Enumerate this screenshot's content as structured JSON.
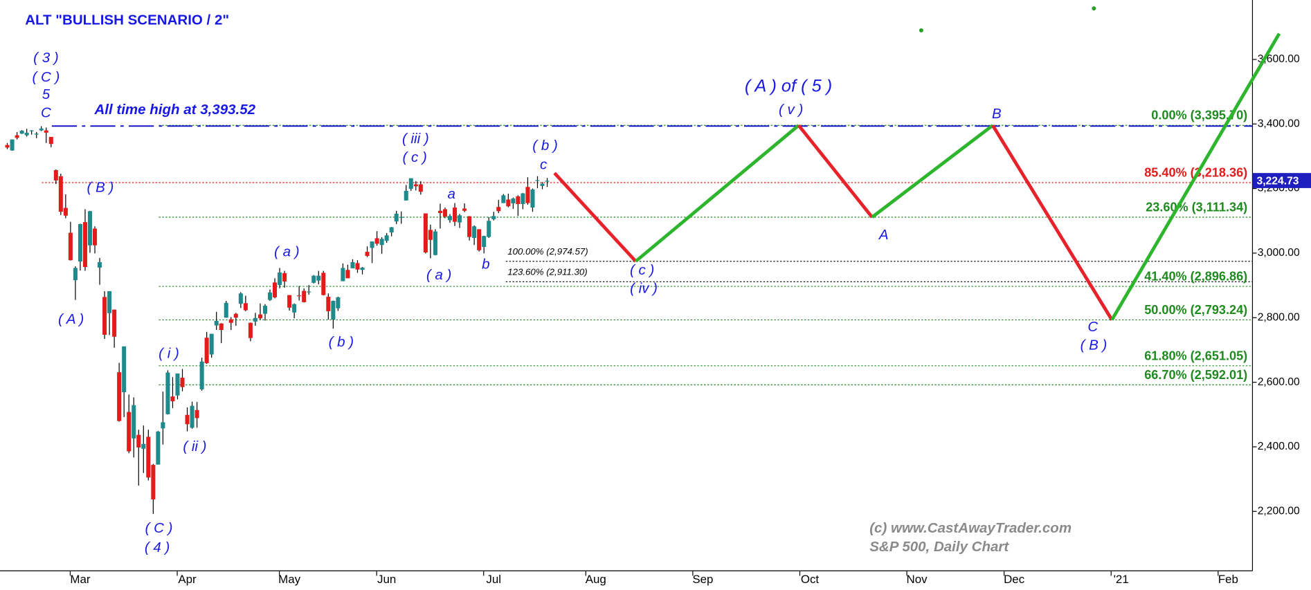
{
  "chart_data": {
    "type": "candlestick",
    "title": "ALT \"BULLISH SCENARIO / 2\"",
    "xlim": [
      -16.5,
      241
    ],
    "ylim": [
      2016,
      3784
    ],
    "xticks": [
      {
        "value": 0,
        "label": "Mar"
      },
      {
        "value": 22,
        "label": "Apr"
      },
      {
        "value": 43,
        "label": "May"
      },
      {
        "value": 63,
        "label": "Jun"
      },
      {
        "value": 85,
        "label": "Jul"
      },
      {
        "value": 106,
        "label": "Aug"
      },
      {
        "value": 128,
        "label": "Sep"
      },
      {
        "value": 150,
        "label": "Oct"
      },
      {
        "value": 172,
        "label": "Nov"
      },
      {
        "value": 192,
        "label": "Dec"
      },
      {
        "value": 214,
        "label": "'21"
      },
      {
        "value": 236,
        "label": "Feb"
      }
    ],
    "yticks": [
      {
        "value": 2200,
        "label": "2,200.00"
      },
      {
        "value": 2400,
        "label": "2,400.00"
      },
      {
        "value": 2600,
        "label": "2,600.00"
      },
      {
        "value": 2800,
        "label": "2,800.00"
      },
      {
        "value": 3000,
        "label": "3,000.00"
      },
      {
        "value": 3200,
        "label": "3,200.00"
      },
      {
        "value": 3400,
        "label": "3,400.00"
      },
      {
        "value": 3600,
        "label": "3,600.00"
      }
    ],
    "up_color": "#1f8a8c",
    "down_color": "#e31b1b",
    "x": [
      -15,
      -14,
      -13,
      -12,
      -11,
      -10,
      -9,
      -8,
      -7,
      -6,
      -5,
      -4,
      -3,
      -2,
      -1,
      0,
      1,
      2,
      3,
      4,
      5,
      6,
      7,
      8,
      9,
      10,
      11,
      12,
      13,
      14,
      15,
      16,
      17,
      18,
      19,
      20,
      21,
      22,
      23,
      24,
      25,
      26,
      27,
      28,
      29,
      30,
      31,
      32,
      33,
      34,
      35,
      36,
      37,
      38,
      39,
      40,
      41,
      42,
      43,
      44,
      45,
      46,
      47,
      48,
      49,
      50,
      51,
      52,
      53,
      54,
      55,
      56,
      57,
      58,
      59,
      60,
      61,
      62,
      63,
      64,
      65,
      66,
      67,
      68,
      69,
      70,
      71,
      72,
      73,
      74,
      75,
      76,
      77,
      78,
      79,
      80,
      81,
      82,
      83,
      84,
      85,
      86,
      87,
      88,
      89,
      90,
      91,
      92,
      93,
      94,
      95,
      96
    ],
    "ohlc": [
      [
        3335,
        3341,
        3322,
        3327
      ],
      [
        3318,
        3352,
        3317,
        3352
      ],
      [
        3365,
        3375,
        3352,
        3357
      ],
      [
        3370,
        3381,
        3369,
        3379
      ],
      [
        3365,
        3385,
        3361,
        3373
      ],
      [
        3378,
        3381,
        3367,
        3380
      ],
      [
        3369,
        3375,
        3356,
        3370
      ],
      [
        3380,
        3393,
        3378,
        3386
      ],
      [
        3380,
        3389,
        3341,
        3373
      ],
      [
        3360,
        3360,
        3328,
        3338
      ],
      [
        3257,
        3259,
        3214,
        3225
      ],
      [
        3238,
        3246,
        3118,
        3128
      ],
      [
        3140,
        3182,
        3108,
        3116
      ],
      [
        3063,
        3097,
        2977,
        2978
      ],
      [
        2916,
        2959,
        2855,
        2954
      ],
      [
        2974,
        3091,
        2946,
        3090
      ],
      [
        3096,
        3136,
        2945,
        2957
      ],
      [
        3024,
        3131,
        3001,
        3130
      ],
      [
        3076,
        3083,
        2999,
        3024
      ],
      [
        2955,
        2985,
        2902,
        2972
      ],
      [
        2864,
        2882,
        2734,
        2747
      ],
      [
        2814,
        2882,
        2746,
        2882
      ],
      [
        2825,
        2825,
        2707,
        2741
      ],
      [
        2631,
        2660,
        2478,
        2480
      ],
      [
        2569,
        2711,
        2492,
        2711
      ],
      [
        2508,
        2562,
        2380,
        2386
      ],
      [
        2426,
        2553,
        2367,
        2529
      ],
      [
        2437,
        2453,
        2280,
        2398
      ],
      [
        2394,
        2466,
        2319,
        2409
      ],
      [
        2431,
        2453,
        2296,
        2305
      ],
      [
        2344,
        2347,
        2192,
        2237
      ],
      [
        2345,
        2449,
        2345,
        2447
      ],
      [
        2457,
        2571,
        2407,
        2476
      ],
      [
        2501,
        2637,
        2500,
        2630
      ],
      [
        2556,
        2616,
        2520,
        2541
      ],
      [
        2559,
        2627,
        2547,
        2627
      ],
      [
        2614,
        2641,
        2572,
        2585
      ],
      [
        2499,
        2522,
        2448,
        2470
      ],
      [
        2459,
        2540,
        2456,
        2527
      ],
      [
        2514,
        2539,
        2459,
        2489
      ],
      [
        2578,
        2676,
        2574,
        2664
      ],
      [
        2738,
        2756,
        2657,
        2659
      ],
      [
        2686,
        2750,
        2676,
        2750
      ],
      [
        2776,
        2818,
        2762,
        2790
      ],
      [
        2782,
        2783,
        2721,
        2762
      ],
      [
        2800,
        2852,
        2800,
        2846
      ],
      [
        2795,
        2802,
        2762,
        2784
      ],
      [
        2812,
        2815,
        2775,
        2800
      ],
      [
        2843,
        2879,
        2830,
        2875
      ],
      [
        2845,
        2868,
        2820,
        2823
      ],
      [
        2784,
        2785,
        2727,
        2737
      ],
      [
        2788,
        2815,
        2775,
        2799
      ],
      [
        2810,
        2844,
        2794,
        2798
      ],
      [
        2812,
        2842,
        2791,
        2837
      ],
      [
        2855,
        2887,
        2852,
        2878
      ],
      [
        2909,
        2922,
        2860,
        2863
      ],
      [
        2901,
        2954,
        2891,
        2940
      ],
      [
        2938,
        2945,
        2893,
        2912
      ],
      [
        2870,
        2870,
        2822,
        2831
      ],
      [
        2816,
        2844,
        2798,
        2842
      ],
      [
        2869,
        2898,
        2853,
        2868
      ],
      [
        2883,
        2891,
        2847,
        2848
      ],
      [
        2879,
        2901,
        2871,
        2881
      ],
      [
        2908,
        2932,
        2906,
        2930
      ],
      [
        2915,
        2945,
        2903,
        2930
      ],
      [
        2939,
        2945,
        2869,
        2870
      ],
      [
        2865,
        2875,
        2794,
        2820
      ],
      [
        2794,
        2853,
        2766,
        2852
      ],
      [
        2829,
        2865,
        2821,
        2863
      ],
      [
        2913,
        2968,
        2913,
        2954
      ],
      [
        2948,
        2964,
        2922,
        2922
      ],
      [
        2953,
        2981,
        2953,
        2972
      ],
      [
        2969,
        2978,
        2939,
        2949
      ],
      [
        2948,
        2957,
        2934,
        2955
      ],
      [
        3004,
        3021,
        2988,
        2991
      ],
      [
        3016,
        3036,
        2969,
        3036
      ],
      [
        3046,
        3068,
        3023,
        3029
      ],
      [
        3025,
        3049,
        2998,
        3044
      ],
      [
        3038,
        3062,
        3032,
        3055
      ],
      [
        3064,
        3081,
        3052,
        3080
      ],
      [
        3098,
        3131,
        3090,
        3122
      ],
      [
        3112,
        3129,
        3091,
        3112
      ],
      [
        3163,
        3211,
        3163,
        3193
      ],
      [
        3199,
        3232,
        3193,
        3232
      ],
      [
        3213,
        3223,
        3194,
        3207
      ],
      [
        3213,
        3223,
        3181,
        3190
      ],
      [
        3123,
        3123,
        2999,
        3002
      ],
      [
        3072,
        3088,
        2984,
        3041
      ],
      [
        2994,
        3074,
        2993,
        3067
      ],
      [
        3131,
        3153,
        3076,
        3124
      ],
      [
        3136,
        3141,
        3108,
        3113
      ],
      [
        3102,
        3121,
        3094,
        3115
      ],
      [
        3141,
        3155,
        3084,
        3097
      ],
      [
        3095,
        3121,
        3078,
        3117
      ],
      [
        3138,
        3154,
        3127,
        3131
      ],
      [
        3114,
        3115,
        3039,
        3050
      ],
      [
        3047,
        3086,
        3025,
        3083
      ],
      [
        3074,
        3074,
        3005,
        3009
      ],
      [
        3019,
        3054,
        2999,
        3053
      ],
      [
        3050,
        3111,
        3047,
        3100
      ],
      [
        3105,
        3128,
        3101,
        3115
      ],
      [
        3143,
        3165,
        3124,
        3130
      ],
      [
        3155,
        3183,
        3155,
        3179
      ],
      [
        3166,
        3184,
        3142,
        3145
      ],
      [
        3154,
        3172,
        3137,
        3169
      ],
      [
        3176,
        3179,
        3115,
        3152
      ],
      [
        3152,
        3186,
        3136,
        3185
      ],
      [
        3205,
        3235,
        3150,
        3155
      ],
      [
        3141,
        3200,
        3128,
        3197
      ],
      [
        3225,
        3238,
        3201,
        3226
      ],
      [
        3208,
        3220,
        3198,
        3215
      ],
      [
        3224,
        3233,
        3205,
        3224
      ]
    ],
    "last_price": {
      "value": 3224.73,
      "label": "3,224.73",
      "color": "#1f1fbf"
    },
    "ath_line": {
      "value": 3393.52,
      "color": "#1515c8"
    },
    "fib_levels": [
      {
        "value": 3395.7,
        "label": "0.00% (3,395.70)",
        "color": "#1f8a1f"
      },
      {
        "value": 3218.36,
        "label": "85.40% (3,218.36)",
        "color": "#e31b1b"
      },
      {
        "value": 3111.34,
        "label": "23.60% (3,111.34)",
        "color": "#1f8a1f"
      },
      {
        "value": 2896.86,
        "label": "41.40% (2,896.86)",
        "color": "#1f8a1f"
      },
      {
        "value": 2793.24,
        "label": "50.00% (2,793.24)",
        "color": "#1f8a1f"
      },
      {
        "value": 2651.05,
        "label": "61.80% (2,651.05)",
        "color": "#1f8a1f"
      },
      {
        "value": 2592.01,
        "label": "66.70% (2,592.01)",
        "color": "#1f8a1f"
      }
    ],
    "target_levels": [
      {
        "value": 2974.57,
        "label": "100.00% (2,974.57)"
      },
      {
        "value": 2911.3,
        "label": "123.60% (2,911.30)"
      }
    ],
    "projection": {
      "x": [
        97.5,
        114.2,
        147.7,
        162.8,
        187.6,
        212.1,
        246.5
      ],
      "values": [
        3248,
        2974.57,
        3395.7,
        3111.34,
        3395.7,
        2793.24,
        3680
      ],
      "up_color": "#2db52d",
      "down_color": "#e8222a"
    },
    "dots": {
      "x": [
        172.9,
        208.4
      ],
      "values": [
        3690,
        3758
      ],
      "color": "#2aa02a"
    },
    "annotations": [
      "( 3 )",
      "( C )",
      "5",
      "C",
      "All time high at 3,393.52",
      "( B )",
      "( A )",
      "( i )",
      "( ii )",
      "( C )",
      "( 4 )",
      "( a )",
      "( b )",
      "( iii )",
      "( c )",
      "a",
      "( a )",
      "b",
      "( b )",
      "c",
      "( c )",
      "( iv )",
      "( A ) of ( 5 )",
      "( v )",
      "A",
      "B",
      "C",
      "( B )",
      "(c) www.CastAwayTrader.com",
      "S&P 500, Daily Chart"
    ]
  }
}
